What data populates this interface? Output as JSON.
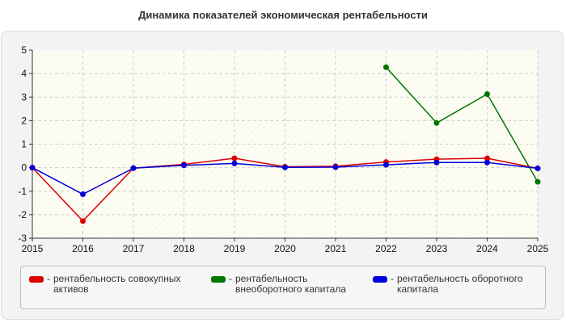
{
  "chart_data": {
    "type": "line",
    "title": "Динамика показателей экономическая рентабельности",
    "xlabel": "",
    "ylabel": "",
    "categories": [
      "2015",
      "2016",
      "2017",
      "2018",
      "2019",
      "2020",
      "2021",
      "2022",
      "2023",
      "2024",
      "2025"
    ],
    "ylim": [
      -3,
      5
    ],
    "yticks": [
      "5",
      "4",
      "3",
      "2",
      "1",
      "0",
      "-1",
      "-2",
      "-3"
    ],
    "grid": true,
    "legend_position": "bottom",
    "series": [
      {
        "name": "рентабельность совокупных активов",
        "color": "#dd0000",
        "values": [
          0.0,
          -2.27,
          -0.02,
          0.14,
          0.4,
          0.04,
          0.06,
          0.24,
          0.36,
          0.4,
          -0.03
        ]
      },
      {
        "name": "рентабельность внеоборотного капитала",
        "color": "#007700",
        "values": [
          null,
          null,
          null,
          null,
          null,
          null,
          null,
          4.27,
          1.9,
          3.13,
          -0.6
        ]
      },
      {
        "name": "рентабельность оборотного капитала",
        "color": "#0000dd",
        "values": [
          0.0,
          -1.13,
          -0.02,
          0.1,
          0.18,
          0.01,
          0.02,
          0.12,
          0.22,
          0.22,
          -0.03
        ]
      }
    ]
  },
  "legend": {
    "dash": "-",
    "items": [
      {
        "label": "рентабельность совокупных активов",
        "color": "#dd0000"
      },
      {
        "label": "рентабельность внеоборотного капитала",
        "color": "#007700"
      },
      {
        "label": "рентабельность оборотного капитала",
        "color": "#0000dd"
      }
    ]
  }
}
